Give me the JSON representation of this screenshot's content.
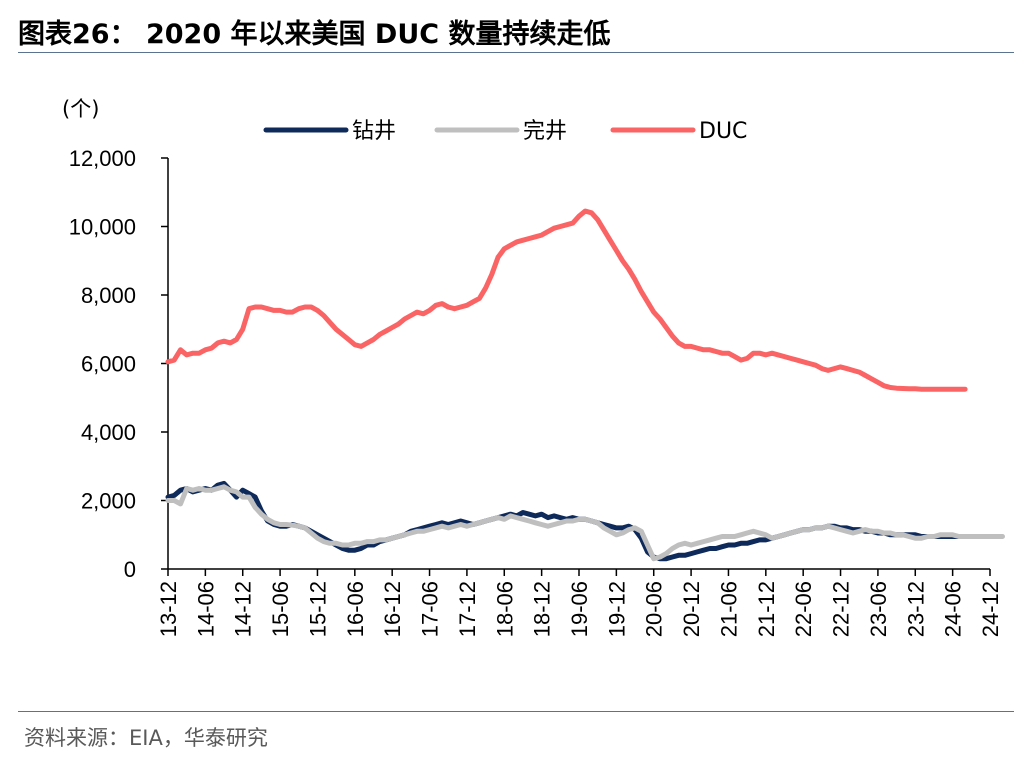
{
  "header": {
    "title": "图表26：  2020 年以来美国 DUC 数量持续走低"
  },
  "footer": {
    "source": "资料来源：EIA，华泰研究"
  },
  "chart_data": {
    "type": "line",
    "unit_label": "(个)",
    "ylim": [
      0,
      12000
    ],
    "y_ticks": [
      "0",
      "2,000",
      "4,000",
      "6,000",
      "8,000",
      "10,000",
      "12,000"
    ],
    "x_tick_labels": [
      "13-12",
      "14-06",
      "14-12",
      "15-06",
      "15-12",
      "16-06",
      "16-12",
      "17-06",
      "17-12",
      "18-06",
      "18-12",
      "19-06",
      "19-12",
      "20-06",
      "20-12",
      "21-06",
      "21-12",
      "22-06",
      "22-12",
      "23-06",
      "23-12",
      "24-06",
      "24-12"
    ],
    "legend_position": "top-center",
    "x_start": "2013-12",
    "grid": false,
    "series": [
      {
        "name": "钻井",
        "color": "#0d2a5a",
        "values": [
          2100,
          2150,
          2300,
          2350,
          2250,
          2300,
          2350,
          2300,
          2450,
          2500,
          2300,
          2100,
          2300,
          2200,
          2100,
          1700,
          1400,
          1300,
          1250,
          1250,
          1300,
          1250,
          1200,
          1100,
          1000,
          900,
          800,
          700,
          600,
          550,
          550,
          600,
          700,
          700,
          800,
          850,
          900,
          950,
          1000,
          1100,
          1150,
          1200,
          1250,
          1300,
          1350,
          1300,
          1350,
          1400,
          1350,
          1300,
          1350,
          1400,
          1450,
          1500,
          1550,
          1600,
          1550,
          1650,
          1600,
          1550,
          1600,
          1500,
          1550,
          1500,
          1450,
          1500,
          1450,
          1450,
          1400,
          1350,
          1300,
          1250,
          1200,
          1200,
          1250,
          1150,
          900,
          500,
          350,
          300,
          300,
          350,
          400,
          400,
          450,
          500,
          550,
          600,
          600,
          650,
          700,
          700,
          750,
          750,
          800,
          850,
          850,
          900,
          950,
          1000,
          1050,
          1100,
          1150,
          1150,
          1200,
          1200,
          1250,
          1250,
          1200,
          1200,
          1150,
          1150,
          1100,
          1100,
          1050,
          1050,
          1000,
          1000,
          1000,
          1000,
          1000,
          950,
          950,
          950,
          950,
          950,
          950,
          950,
          950,
          950,
          950,
          950,
          950
        ]
      },
      {
        "name": "完井",
        "color": "#bfbfbf",
        "values": [
          2000,
          2000,
          1900,
          2350,
          2300,
          2350,
          2300,
          2300,
          2350,
          2400,
          2300,
          2250,
          2100,
          2100,
          1800,
          1600,
          1450,
          1350,
          1300,
          1300,
          1280,
          1250,
          1200,
          1050,
          900,
          800,
          750,
          750,
          700,
          700,
          750,
          750,
          800,
          800,
          850,
          850,
          900,
          950,
          1000,
          1050,
          1100,
          1100,
          1150,
          1200,
          1250,
          1200,
          1250,
          1300,
          1250,
          1300,
          1350,
          1400,
          1450,
          1500,
          1450,
          1550,
          1500,
          1450,
          1400,
          1350,
          1300,
          1250,
          1300,
          1350,
          1400,
          1400,
          1450,
          1450,
          1400,
          1350,
          1200,
          1100,
          1000,
          1050,
          1150,
          1200,
          1100,
          700,
          300,
          350,
          450,
          600,
          700,
          750,
          700,
          750,
          800,
          850,
          900,
          950,
          950,
          950,
          1000,
          1050,
          1100,
          1050,
          1000,
          900,
          950,
          1000,
          1050,
          1100,
          1150,
          1150,
          1200,
          1200,
          1250,
          1200,
          1150,
          1100,
          1050,
          1100,
          1150,
          1100,
          1100,
          1050,
          1050,
          1000,
          1000,
          950,
          900,
          900,
          950,
          950,
          1000,
          1000,
          1000,
          950,
          950,
          950,
          950,
          950,
          950,
          950,
          950
        ]
      },
      {
        "name": "DUC",
        "color": "#fa6464",
        "values": [
          6050,
          6100,
          6400,
          6250,
          6300,
          6300,
          6400,
          6450,
          6600,
          6650,
          6600,
          6700,
          7000,
          7600,
          7650,
          7650,
          7600,
          7550,
          7550,
          7500,
          7500,
          7600,
          7650,
          7650,
          7550,
          7400,
          7200,
          7000,
          6850,
          6700,
          6550,
          6500,
          6600,
          6700,
          6850,
          6950,
          7050,
          7150,
          7300,
          7400,
          7500,
          7450,
          7550,
          7700,
          7750,
          7650,
          7600,
          7650,
          7700,
          7800,
          7900,
          8200,
          8600,
          9100,
          9350,
          9450,
          9550,
          9600,
          9650,
          9700,
          9750,
          9850,
          9950,
          10000,
          10050,
          10100,
          10300,
          10450,
          10400,
          10200,
          9900,
          9600,
          9300,
          9000,
          8750,
          8450,
          8100,
          7800,
          7500,
          7300,
          7050,
          6800,
          6600,
          6500,
          6500,
          6450,
          6400,
          6400,
          6350,
          6300,
          6300,
          6200,
          6100,
          6150,
          6300,
          6300,
          6250,
          6300,
          6250,
          6200,
          6150,
          6100,
          6050,
          6000,
          5950,
          5850,
          5800,
          5850,
          5900,
          5850,
          5800,
          5750,
          5650,
          5550,
          5450,
          5350,
          5300,
          5280,
          5270,
          5260,
          5260,
          5250,
          5250,
          5250,
          5250,
          5250,
          5250,
          5250,
          5250
        ]
      }
    ]
  }
}
